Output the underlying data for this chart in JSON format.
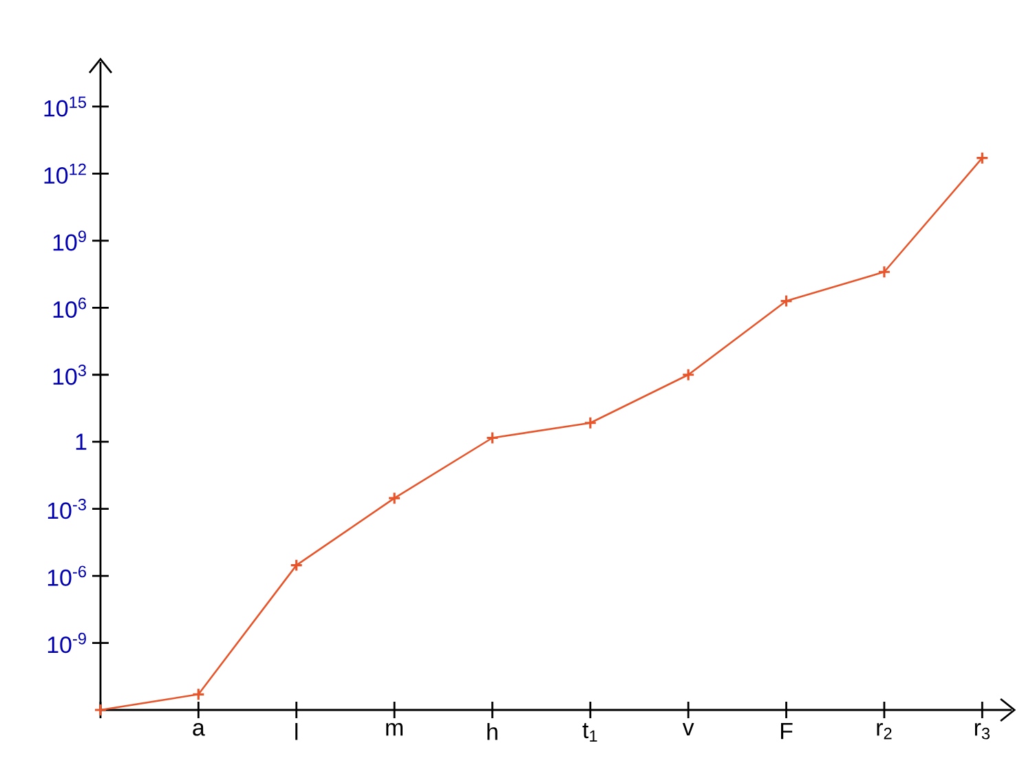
{
  "chart_data": {
    "type": "line",
    "log": "y",
    "categories": [
      null,
      "a",
      "l",
      "m",
      "h",
      "t$_{1}$",
      "v",
      "F",
      "r$_{2}$",
      "r$_{3}$"
    ],
    "series": [
      {
        "color": "#e8552a",
        "values": [
          1e-12,
          5e-12,
          3e-06,
          0.003,
          1.5,
          7,
          1000,
          2000000.0,
          40000000.0,
          5000000000000.0
        ]
      }
    ],
    "ylim": [
      1e-12,
      1e+17
    ],
    "yticks": [
      {
        "value": 1e-09,
        "label": "10$^{-9}$"
      },
      {
        "value": 1e-06,
        "label": "10$^{-6}$"
      },
      {
        "value": 0.001,
        "label": "10$^{-3}$"
      },
      1,
      {
        "value": 1000.0,
        "label": "10$^{3}$"
      },
      {
        "value": 1000000.0,
        "label": "10$^{6}$"
      },
      {
        "value": 1000000000.0,
        "label": "10$^{9}$"
      },
      {
        "value": 1000000000000.0,
        "label": "10$^{12}$"
      },
      {
        "value": 1000000000000000.0,
        "label": "10$^{15}$"
      }
    ],
    "marker": "cross",
    "line_style": "solid"
  }
}
